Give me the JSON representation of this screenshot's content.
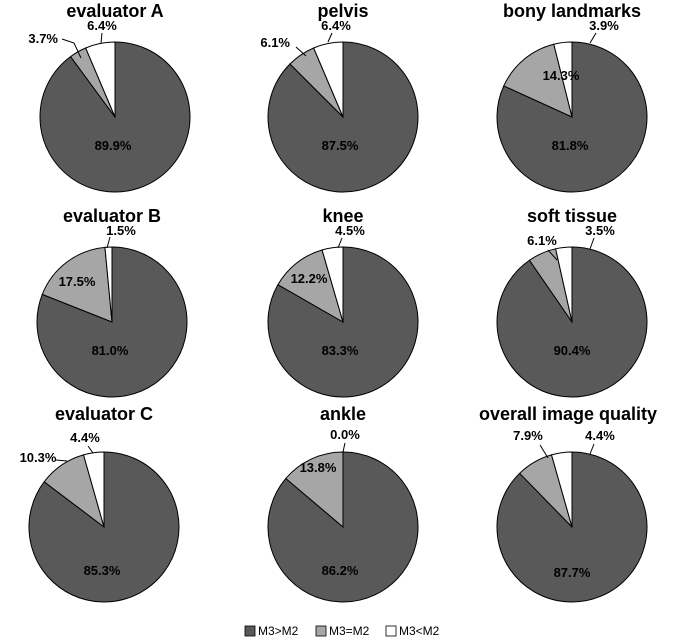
{
  "chart_data": {
    "type": "pie",
    "colors": [
      "#595959",
      "#a6a6a6",
      "#ffffff"
    ],
    "legend": {
      "placement": "bottom-center",
      "entries": [
        "M3>M2",
        "M3=M2",
        "M3<M2"
      ]
    },
    "charts": [
      {
        "title": "evaluator A",
        "values": [
          89.9,
          3.7,
          6.4
        ],
        "labels": [
          "89.9%",
          "3.7%",
          "6.4%"
        ]
      },
      {
        "title": "pelvis",
        "values": [
          87.5,
          6.1,
          6.4
        ],
        "labels": [
          "87.5%",
          "6.1%",
          "6.4%"
        ]
      },
      {
        "title": "bony landmarks",
        "values": [
          81.8,
          14.3,
          3.9
        ],
        "labels": [
          "81.8%",
          "14.3%",
          "3.9%"
        ]
      },
      {
        "title": "evaluator B",
        "values": [
          81.0,
          17.5,
          1.5
        ],
        "labels": [
          "81.0%",
          "17.5%",
          "1.5%"
        ]
      },
      {
        "title": "knee",
        "values": [
          83.3,
          12.2,
          4.5
        ],
        "labels": [
          "83.3%",
          "12.2%",
          "4.5%"
        ]
      },
      {
        "title": "soft tissue",
        "values": [
          90.4,
          6.1,
          3.5
        ],
        "labels": [
          "90.4%",
          "6.1%",
          "3.5%"
        ]
      },
      {
        "title": "evaluator C",
        "values": [
          85.3,
          10.3,
          4.4
        ],
        "labels": [
          "85.3%",
          "10.3%",
          "4.4%"
        ]
      },
      {
        "title": "ankle",
        "values": [
          86.2,
          13.8,
          0.0
        ],
        "labels": [
          "86.2%",
          "13.8%",
          "0.0%"
        ]
      },
      {
        "title": "overall image quality",
        "values": [
          87.7,
          7.9,
          4.4
        ],
        "labels": [
          "87.7%",
          "7.9%",
          "4.4%"
        ]
      }
    ]
  }
}
